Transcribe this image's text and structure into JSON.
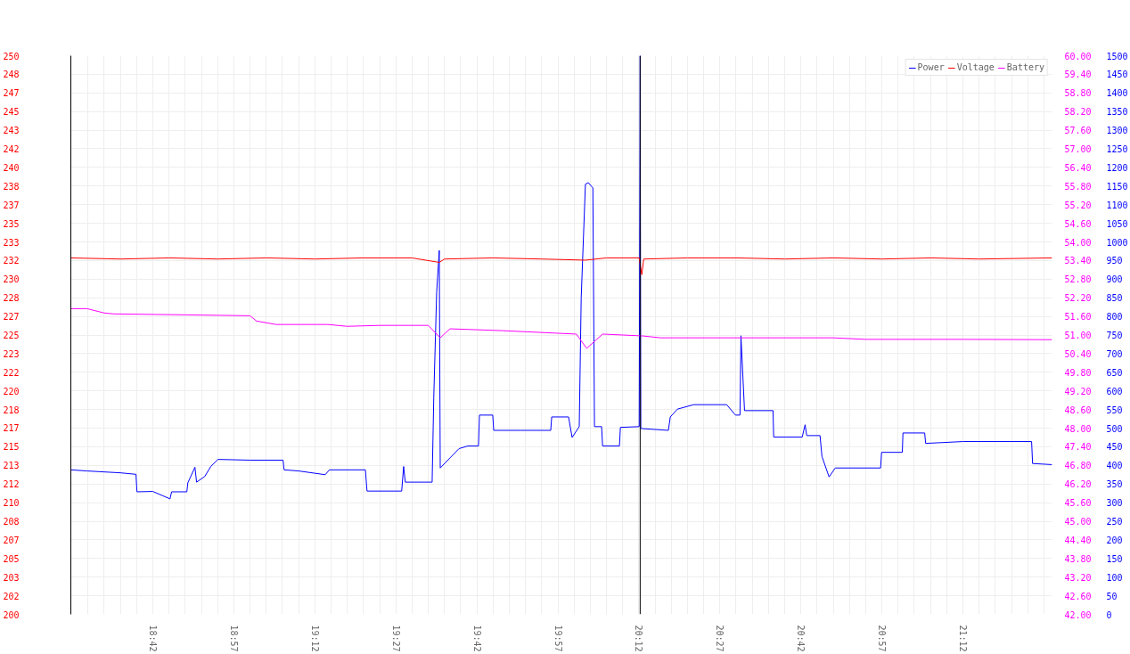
{
  "chart_data": {
    "type": "line",
    "legend": "top right",
    "grid": true,
    "line_style": "solid",
    "xlim": [
      18.447,
      21.475
    ],
    "xticks": [
      {
        "value": 18.5,
        "label": null
      },
      {
        "value": 18.55,
        "label": null
      },
      {
        "value": 18.6,
        "label": null
      },
      {
        "value": 18.65,
        "label": null
      },
      {
        "value": 18.7,
        "label": "18:42"
      },
      {
        "value": 18.75,
        "label": null
      },
      {
        "value": 18.8,
        "label": null
      },
      {
        "value": 18.85,
        "label": null
      },
      {
        "value": 18.9,
        "label": null
      },
      {
        "value": 18.95,
        "label": "18:57"
      },
      {
        "value": 19.0,
        "label": null
      },
      {
        "value": 19.05,
        "label": null
      },
      {
        "value": 19.1,
        "label": null
      },
      {
        "value": 19.15,
        "label": null
      },
      {
        "value": 19.2,
        "label": "19:12"
      },
      {
        "value": 19.25,
        "label": null
      },
      {
        "value": 19.3,
        "label": null
      },
      {
        "value": 19.35,
        "label": null
      },
      {
        "value": 19.4,
        "label": null
      },
      {
        "value": 19.45,
        "label": "19:27"
      },
      {
        "value": 19.5,
        "label": null
      },
      {
        "value": 19.55,
        "label": null
      },
      {
        "value": 19.6,
        "label": null
      },
      {
        "value": 19.65,
        "label": null
      },
      {
        "value": 19.7,
        "label": "19:42"
      },
      {
        "value": 19.75,
        "label": null
      },
      {
        "value": 19.8,
        "label": null
      },
      {
        "value": 19.85,
        "label": null
      },
      {
        "value": 19.9,
        "label": null
      },
      {
        "value": 19.95,
        "label": "19:57"
      },
      {
        "value": 20.0,
        "label": null
      },
      {
        "value": 20.05,
        "label": null
      },
      {
        "value": 20.1,
        "label": null
      },
      {
        "value": 20.15,
        "label": null
      },
      {
        "value": 20.2,
        "label": "20:12"
      },
      {
        "value": 20.25,
        "label": null
      },
      {
        "value": 20.3,
        "label": null
      },
      {
        "value": 20.35,
        "label": null
      },
      {
        "value": 20.4,
        "label": null
      },
      {
        "value": 20.45,
        "label": "20:27"
      },
      {
        "value": 20.5,
        "label": null
      },
      {
        "value": 20.55,
        "label": null
      },
      {
        "value": 20.6,
        "label": null
      },
      {
        "value": 20.65,
        "label": null
      },
      {
        "value": 20.7,
        "label": "20:42"
      },
      {
        "value": 20.75,
        "label": null
      },
      {
        "value": 20.8,
        "label": null
      },
      {
        "value": 20.85,
        "label": null
      },
      {
        "value": 20.9,
        "label": null
      },
      {
        "value": 20.95,
        "label": "20:57"
      },
      {
        "value": 21.0,
        "label": null
      },
      {
        "value": 21.05,
        "label": null
      },
      {
        "value": 21.1,
        "label": null
      },
      {
        "value": 21.15,
        "label": null
      },
      {
        "value": 21.2,
        "label": "21:12"
      },
      {
        "value": 21.25,
        "label": null
      },
      {
        "value": 21.3,
        "label": null
      },
      {
        "value": 21.35,
        "label": null
      },
      {
        "value": 21.4,
        "label": null
      },
      {
        "value": 21.45,
        "label": null
      }
    ],
    "ylim": [
      200,
      250
    ],
    "yticks": [
      200,
      {
        "value": 201.667,
        "label": "202"
      },
      {
        "value": 203.333,
        "label": "203"
      },
      205,
      {
        "value": 206.667,
        "label": "207"
      },
      {
        "value": 208.333,
        "label": "208"
      },
      210,
      {
        "value": 211.667,
        "label": "212"
      },
      {
        "value": 213.333,
        "label": "213"
      },
      215,
      {
        "value": 216.667,
        "label": "217"
      },
      {
        "value": 218.333,
        "label": "218"
      },
      220,
      {
        "value": 221.667,
        "label": "222"
      },
      {
        "value": 223.333,
        "label": "223"
      },
      225,
      {
        "value": 226.667,
        "label": "227"
      },
      {
        "value": 228.333,
        "label": "228"
      },
      230,
      {
        "value": 231.667,
        "label": "232"
      },
      {
        "value": 233.333,
        "label": "233"
      },
      235,
      {
        "value": 236.667,
        "label": "237"
      },
      {
        "value": 238.333,
        "label": "238"
      },
      240,
      {
        "value": 241.667,
        "label": "242"
      },
      {
        "value": 243.333,
        "label": "243"
      },
      245,
      {
        "value": 246.667,
        "label": "247"
      },
      {
        "value": 248.333,
        "label": "248"
      },
      250
    ],
    "y2lim": [
      42,
      60
    ],
    "y2ticks": [
      {
        "value": 42.0,
        "label": "42.00"
      },
      {
        "value": 42.6,
        "label": "42.60"
      },
      {
        "value": 43.2,
        "label": "43.20"
      },
      {
        "value": 43.8,
        "label": "43.80"
      },
      {
        "value": 44.4,
        "label": "44.40"
      },
      {
        "value": 45.0,
        "label": "45.00"
      },
      {
        "value": 45.6,
        "label": "45.60"
      },
      {
        "value": 46.2,
        "label": "46.20"
      },
      {
        "value": 46.8,
        "label": "46.80"
      },
      {
        "value": 47.4,
        "label": "47.40"
      },
      {
        "value": 48.0,
        "label": "48.00"
      },
      {
        "value": 48.6,
        "label": "48.60"
      },
      {
        "value": 49.2,
        "label": "49.20"
      },
      {
        "value": 49.8,
        "label": "49.80"
      },
      {
        "value": 50.4,
        "label": "50.40"
      },
      {
        "value": 51.0,
        "label": "51.00"
      },
      {
        "value": 51.6,
        "label": "51.60"
      },
      {
        "value": 52.2,
        "label": "52.20"
      },
      {
        "value": 52.8,
        "label": "52.80"
      },
      {
        "value": 53.4,
        "label": "53.40"
      },
      {
        "value": 54.0,
        "label": "54.00"
      },
      {
        "value": 54.6,
        "label": "54.60"
      },
      {
        "value": 55.2,
        "label": "55.20"
      },
      {
        "value": 55.8,
        "label": "55.80"
      },
      {
        "value": 56.4,
        "label": "56.40"
      },
      {
        "value": 57.0,
        "label": "57.00"
      },
      {
        "value": 57.6,
        "label": "57.60"
      },
      {
        "value": 58.2,
        "label": "58.20"
      },
      {
        "value": 58.8,
        "label": "58.80"
      },
      {
        "value": 59.4,
        "label": "59.40"
      },
      {
        "value": 60.0,
        "label": "60.00"
      }
    ],
    "y3lim": [
      0,
      1500
    ],
    "y3ticks": [
      0,
      50,
      100,
      150,
      200,
      250,
      300,
      350,
      400,
      450,
      500,
      550,
      600,
      650,
      700,
      750,
      800,
      850,
      900,
      950,
      1000,
      1050,
      1100,
      1150,
      1200,
      1250,
      1300,
      1350,
      1400,
      1450,
      1500
    ],
    "ref_lines": [
      {
        "axis": "x",
        "value": 20.204,
        "color": "#000000"
      }
    ],
    "series": [
      {
        "name": "Power",
        "color": "#0000ff",
        "axis": "y3",
        "x": [
          18.447,
          18.497,
          18.6,
          18.648,
          18.651,
          18.7,
          18.753,
          18.758,
          18.805,
          18.808,
          18.83,
          18.835,
          18.86,
          18.879,
          18.901,
          19.0,
          19.102,
          19.105,
          19.15,
          19.232,
          19.245,
          19.356,
          19.361,
          19.468,
          19.474,
          19.479,
          19.562,
          19.567,
          19.576,
          19.584,
          19.587,
          19.617,
          19.645,
          19.672,
          19.705,
          19.708,
          19.749,
          19.752,
          19.837,
          19.928,
          19.931,
          19.983,
          19.994,
          20.016,
          20.022,
          20.035,
          20.044,
          20.058,
          20.063,
          20.085,
          20.088,
          20.14,
          20.143,
          20.201,
          20.204,
          20.206,
          20.291,
          20.297,
          20.319,
          20.369,
          20.471,
          20.498,
          20.512,
          20.515,
          20.526,
          20.614,
          20.616,
          20.704,
          20.713,
          20.718,
          20.759,
          20.765,
          20.787,
          20.806,
          20.946,
          20.949,
          21.013,
          21.015,
          21.082,
          21.085,
          21.2,
          21.412,
          21.415,
          21.475
        ],
        "values": [
          388,
          385,
          380,
          376,
          329,
          330,
          310,
          329,
          329,
          353,
          395,
          355,
          370,
          397,
          416,
          414,
          414,
          388,
          385,
          375,
          388,
          388,
          331,
          331,
          397,
          355,
          355,
          582,
          866,
          977,
          393,
          420,
          445,
          452,
          452,
          535,
          535,
          494,
          494,
          494,
          530,
          530,
          475,
          504,
          849,
          1155,
          1159,
          1145,
          504,
          504,
          452,
          452,
          502,
          504,
          1500,
          499,
          494,
          530,
          551,
          563,
          563,
          535,
          535,
          748,
          547,
          547,
          476,
          476,
          509,
          480,
          480,
          424,
          369,
          393,
          393,
          435,
          435,
          487,
          487,
          459,
          464,
          464,
          405,
          402
        ]
      },
      {
        "name": "Voltage",
        "color": "#ff0000",
        "axis": "y",
        "x": [
          18.447,
          18.6,
          18.75,
          18.9,
          19.05,
          19.2,
          19.35,
          19.5,
          19.584,
          19.6,
          19.75,
          19.9,
          20.035,
          20.1,
          20.201,
          20.209,
          20.215,
          20.35,
          20.5,
          20.65,
          20.8,
          20.95,
          21.1,
          21.25,
          21.475
        ],
        "values": [
          231.9,
          231.8,
          231.9,
          231.8,
          231.9,
          231.8,
          231.9,
          231.9,
          231.5,
          231.8,
          231.9,
          231.8,
          231.7,
          231.9,
          231.9,
          230.4,
          231.8,
          231.9,
          231.9,
          231.8,
          231.9,
          231.8,
          231.9,
          231.8,
          231.9
        ]
      },
      {
        "name": "Battery",
        "color": "#ff00ff",
        "axis": "y2",
        "x": [
          18.447,
          18.497,
          18.55,
          18.58,
          18.8,
          19.0,
          19.02,
          19.08,
          19.24,
          19.3,
          19.4,
          19.55,
          19.587,
          19.617,
          19.78,
          19.945,
          20.007,
          20.039,
          20.088,
          20.212,
          20.267,
          20.5,
          20.8,
          20.9,
          21.2,
          21.475
        ],
        "values": [
          51.85,
          51.85,
          51.71,
          51.68,
          51.65,
          51.62,
          51.45,
          51.34,
          51.34,
          51.28,
          51.31,
          51.31,
          50.91,
          51.2,
          51.14,
          51.06,
          51.03,
          50.57,
          51.03,
          50.97,
          50.91,
          50.91,
          50.91,
          50.86,
          50.86,
          50.85
        ]
      }
    ]
  }
}
